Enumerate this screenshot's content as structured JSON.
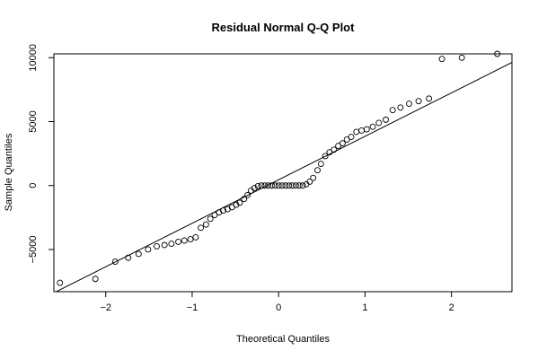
{
  "chart_data": {
    "type": "scatter",
    "title": "Residual Normal Q-Q Plot",
    "xlabel": "Theoretical Quantiles",
    "ylabel": "Sample Quantiles",
    "xlim": [
      -2.6,
      2.7
    ],
    "ylim": [
      -8300,
      10300
    ],
    "x_ticks": [
      -2,
      -1,
      0,
      1,
      2
    ],
    "x_tick_labels": [
      "−2",
      "−1",
      "0",
      "1",
      "2"
    ],
    "y_ticks": [
      -5000,
      0,
      5000,
      10000
    ],
    "y_tick_labels": [
      "−5000",
      "0",
      "5000",
      "10000"
    ],
    "grid": false,
    "legend": "none",
    "reference_line": {
      "slope": 3400,
      "intercept": 450
    },
    "points": {
      "x": [
        -2.53,
        -2.12,
        -1.89,
        -1.74,
        -1.62,
        -1.51,
        -1.41,
        -1.32,
        -1.24,
        -1.16,
        -1.09,
        -1.02,
        -0.96,
        -0.9,
        -0.84,
        -0.79,
        -0.74,
        -0.69,
        -0.64,
        -0.59,
        -0.54,
        -0.49,
        -0.45,
        -0.4,
        -0.36,
        -0.32,
        -0.28,
        -0.24,
        -0.2,
        -0.16,
        -0.12,
        -0.08,
        -0.04,
        0,
        0.04,
        0.08,
        0.12,
        0.16,
        0.2,
        0.24,
        0.28,
        0.32,
        0.36,
        0.4,
        0.45,
        0.49,
        0.54,
        0.59,
        0.64,
        0.69,
        0.74,
        0.79,
        0.84,
        0.9,
        0.96,
        1.02,
        1.09,
        1.16,
        1.24,
        1.32,
        1.41,
        1.51,
        1.62,
        1.74,
        1.89,
        2.12,
        2.53
      ],
      "y": [
        -7600,
        -7300,
        -5950,
        -5650,
        -5350,
        -5000,
        -4750,
        -4650,
        -4550,
        -4400,
        -4300,
        -4200,
        -4050,
        -3300,
        -3050,
        -2600,
        -2300,
        -2100,
        -1950,
        -1850,
        -1700,
        -1500,
        -1350,
        -1050,
        -750,
        -400,
        -200,
        -50,
        0,
        0,
        0,
        0,
        0,
        0,
        0,
        0,
        0,
        0,
        0,
        0,
        0,
        100,
        300,
        600,
        1200,
        1700,
        2300,
        2600,
        2800,
        3100,
        3300,
        3600,
        3800,
        4200,
        4300,
        4400,
        4600,
        4900,
        5150,
        5900,
        6100,
        6400,
        6600,
        6800,
        9900,
        10000,
        10300
      ]
    }
  }
}
